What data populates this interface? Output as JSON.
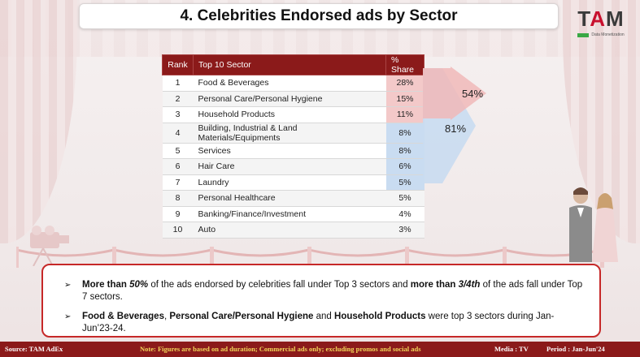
{
  "title": "4. Celebrities Endorsed ads by Sector",
  "logo": {
    "main": "TAM",
    "tagline": "Data Monetization"
  },
  "table": {
    "headers": [
      "Rank",
      "Top 10 Sector",
      "% Share"
    ],
    "rows": [
      {
        "rank": "1",
        "sector": "Food & Beverages",
        "share": "28%",
        "highlight": "#f3c9c9"
      },
      {
        "rank": "2",
        "sector": "Personal Care/Personal Hygiene",
        "share": "15%",
        "highlight": "#f3c9c9"
      },
      {
        "rank": "3",
        "sector": "Household Products",
        "share": "11%",
        "highlight": "#f3c9c9"
      },
      {
        "rank": "4",
        "sector": "Building, Industrial & Land Materials/Equipments",
        "share": "8%",
        "highlight": "#c9dcf1"
      },
      {
        "rank": "5",
        "sector": "Services",
        "share": "8%",
        "highlight": "#c9dcf1"
      },
      {
        "rank": "6",
        "sector": "Hair Care",
        "share": "6%",
        "highlight": "#c9dcf1"
      },
      {
        "rank": "7",
        "sector": "Laundry",
        "share": "5%",
        "highlight": "#c9dcf1"
      },
      {
        "rank": "8",
        "sector": "Personal Healthcare",
        "share": "5%",
        "highlight": ""
      },
      {
        "rank": "9",
        "sector": "Banking/Finance/Investment",
        "share": "4%",
        "highlight": ""
      },
      {
        "rank": "10",
        "sector": "Auto",
        "share": "3%",
        "highlight": ""
      }
    ]
  },
  "callouts": {
    "top3": "54%",
    "top7": "81%"
  },
  "insights": {
    "b1": {
      "s1": "More than ",
      "s2": "50%",
      "s3": " of the ads endorsed by celebrities fall under Top 3 sectors and ",
      "s4": "more than ",
      "s5": "3/4th",
      "s6": " of the ads fall under Top 7 sectors."
    },
    "b2": {
      "s1": "Food & Beverages",
      "s2": ", ",
      "s3": "Personal Care/Personal Hygiene",
      "s4": " and ",
      "s5": "Household Products",
      "s6": " were top 3 sectors during Jan-Jun’23-24."
    },
    "bullet": "➢"
  },
  "footer": {
    "source": "Source: TAM AdEx",
    "note": "Note: Figures are based on ad duration; Commercial ads only; excluding promos and social ads",
    "media": "Media : TV",
    "period": "Period : Jan-Jun'24"
  },
  "colors": {
    "brand_red": "#8b1a1a",
    "accent_red": "#c62828",
    "top3_fill": "#f3c9c9",
    "top7_fill": "#c9dcf1"
  }
}
